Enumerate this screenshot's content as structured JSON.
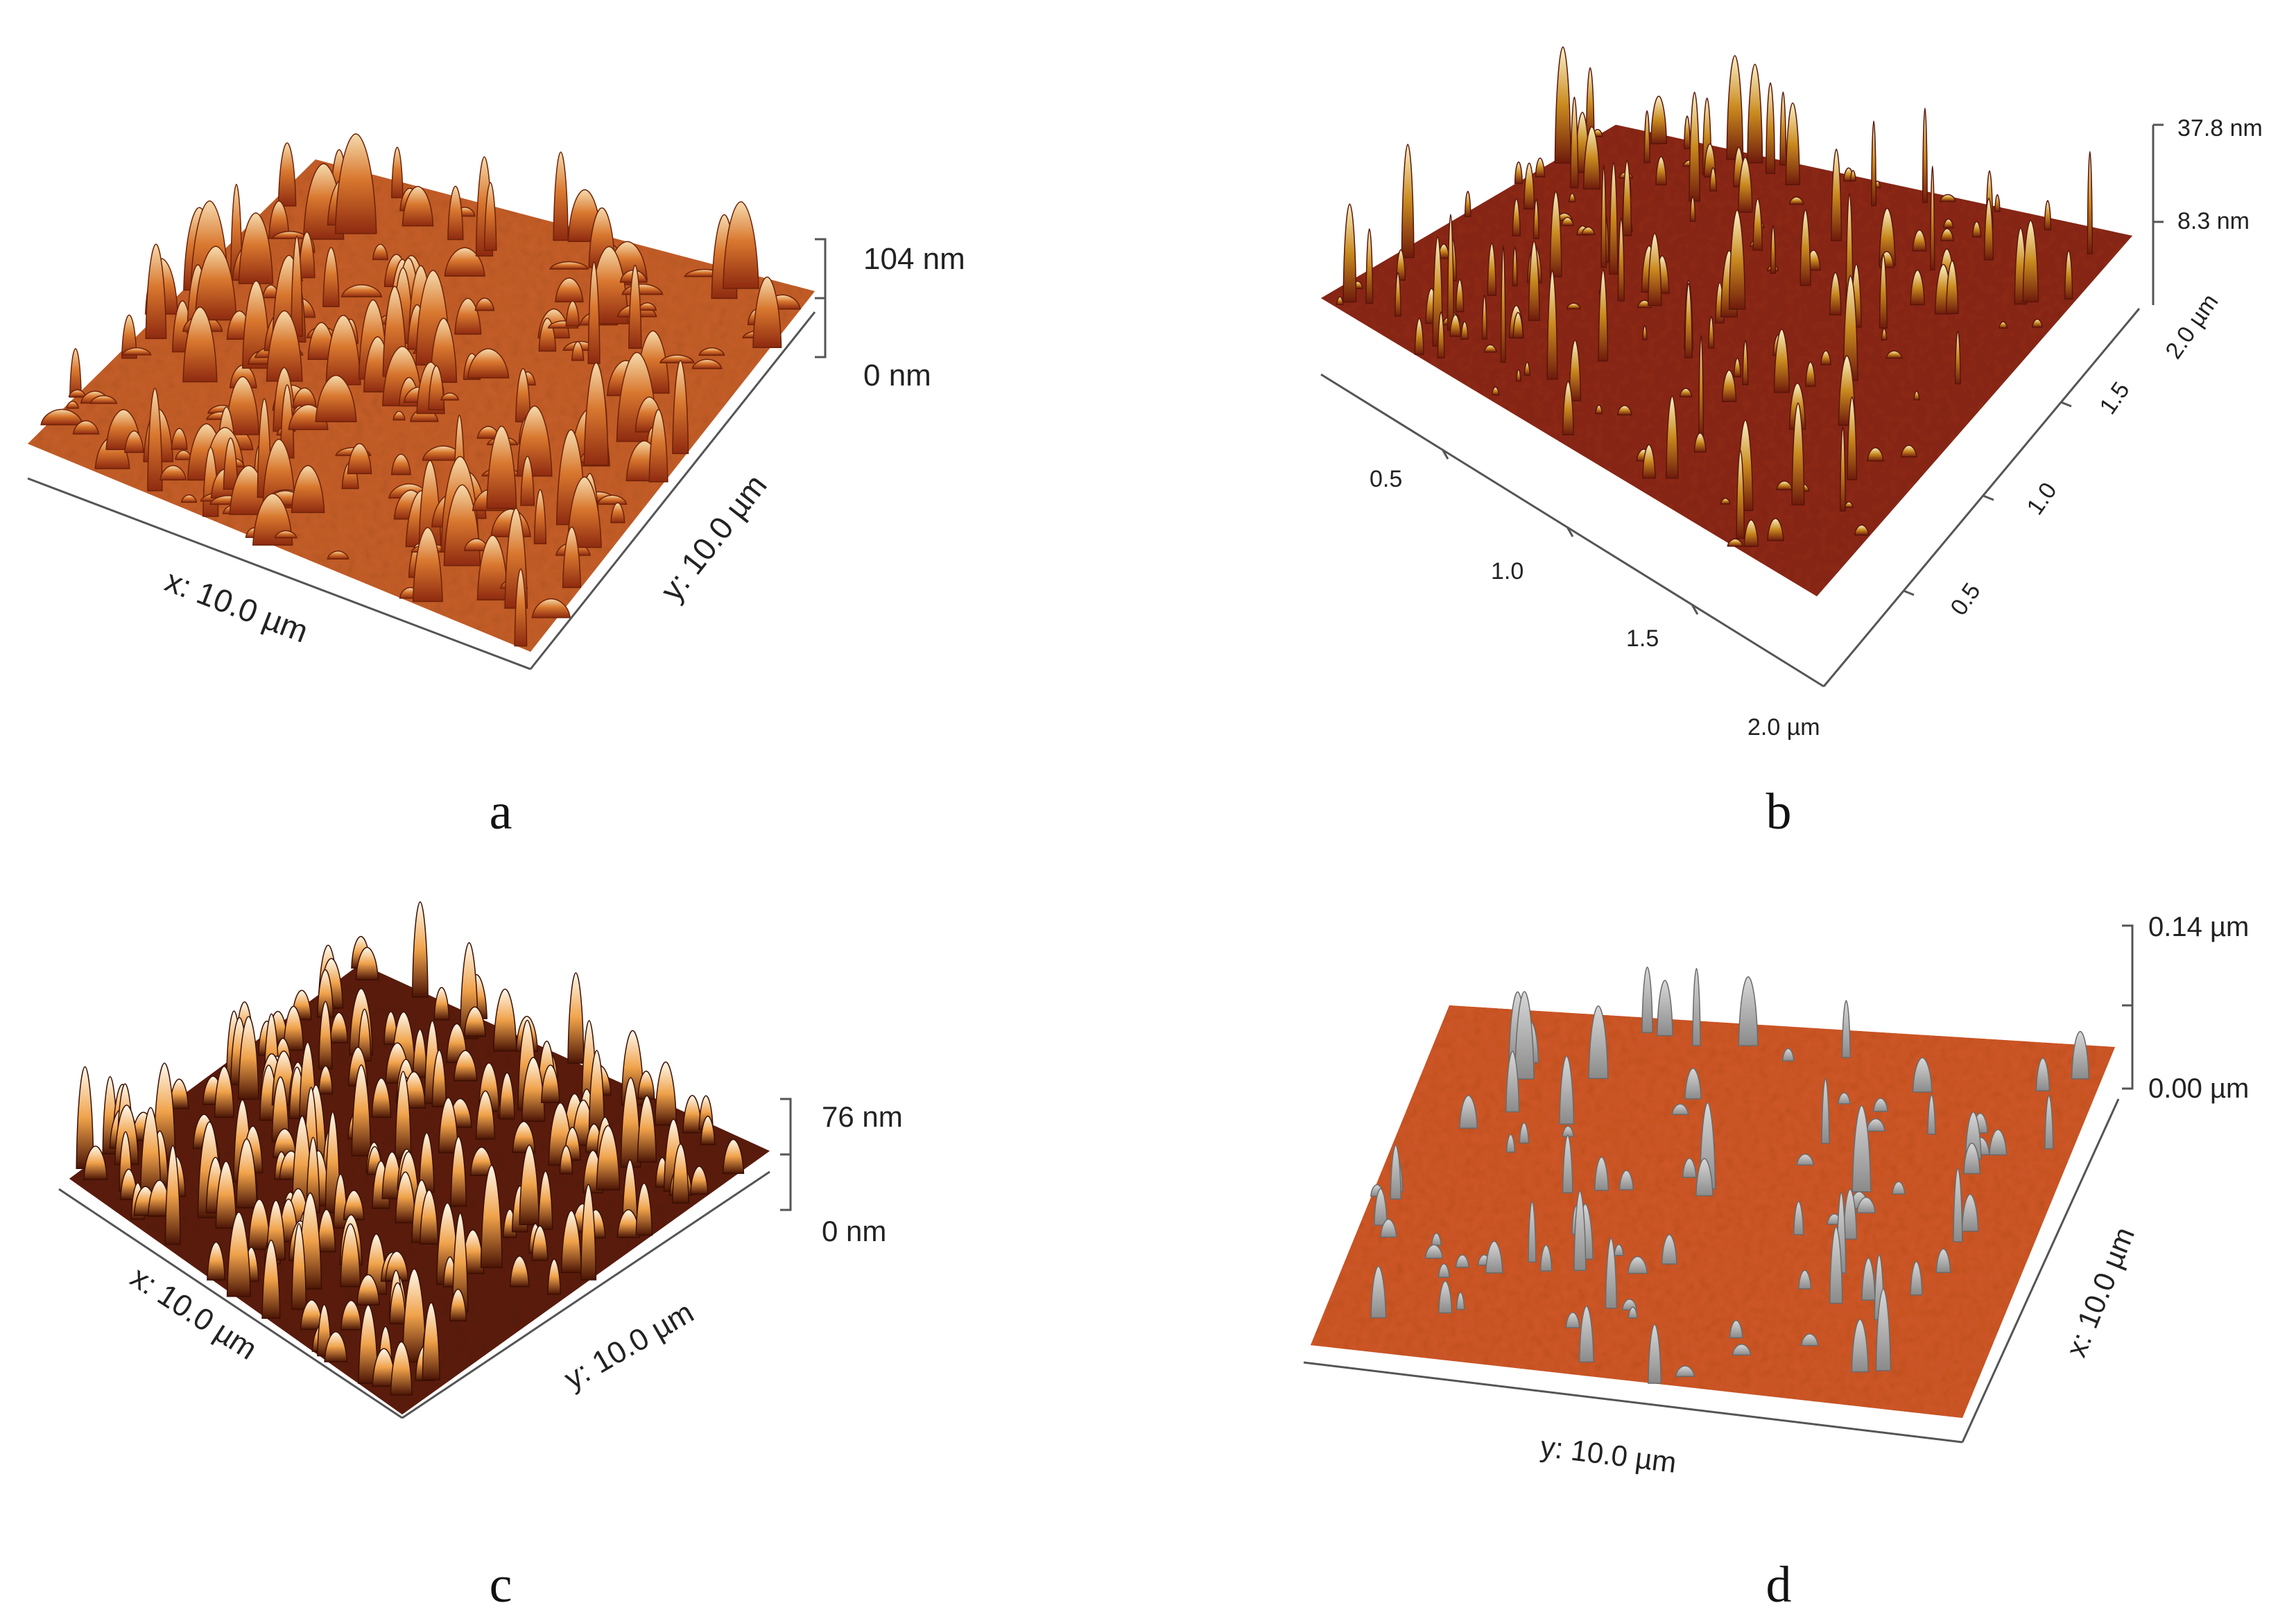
{
  "panels": [
    {
      "id": "a",
      "caption": "a",
      "z_top": "104 nm",
      "z_bottom": "0 nm",
      "x_label": "x: 10.0 µm",
      "y_label": "y: 10.0 µm",
      "peak_color": "#f2d3a1",
      "base_color": "#b5401a"
    },
    {
      "id": "b",
      "caption": "b",
      "z_top": "37.8 nm",
      "z_mid": "8.3 nm",
      "front_ticks": [
        "0.5",
        "1.0",
        "1.5",
        "2.0 µm"
      ],
      "side_ticks": [
        "0.5",
        "1.0",
        "1.5",
        "2.0 µm"
      ],
      "peak_color": "#f1d48a",
      "base_color": "#7a1c0e"
    },
    {
      "id": "c",
      "caption": "c",
      "z_top": "76 nm",
      "z_bottom": "0 nm",
      "x_label": "x: 10.0 µm",
      "y_label": "y: 10.0 µm",
      "peak_color": "#fff1d6",
      "base_color": "#5a1c08"
    },
    {
      "id": "d",
      "caption": "d",
      "z_top": "0.14 µm",
      "z_bottom": "0.00 µm",
      "y_label": "y: 10.0 µm",
      "x_label": "x: 10.0 µm",
      "peak_color": "#a9a9a9",
      "base_color": "#c8471c"
    }
  ]
}
